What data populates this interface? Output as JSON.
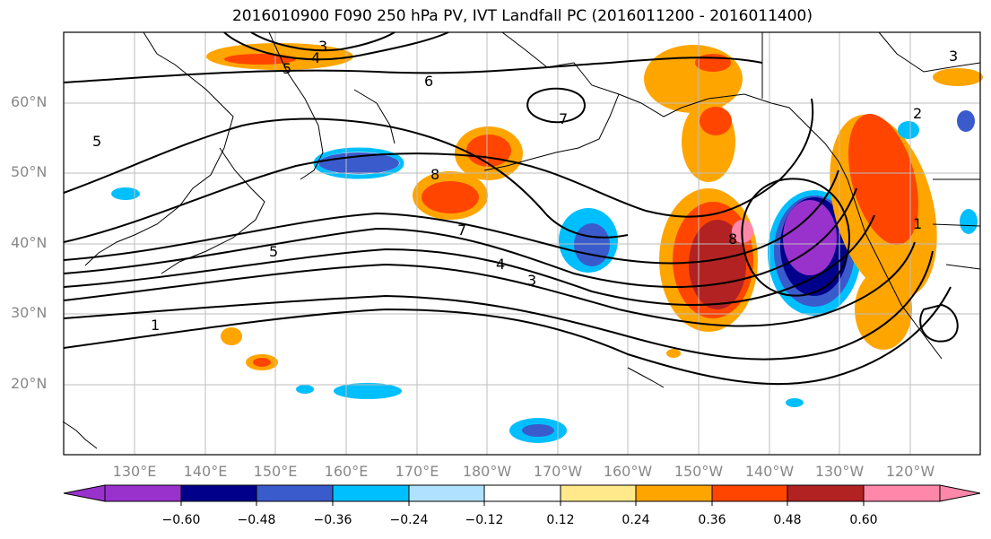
{
  "title": "2016010900 F090 250 hPa PV, IVT Landfall PC (2016011200 - 2016011400)",
  "lat_labels": [
    "60°N",
    "50°N",
    "40°N",
    "30°N",
    "20°N"
  ],
  "lon_labels": [
    "130°E",
    "140°E",
    "150°E",
    "160°E",
    "170°E",
    "180°W",
    "170°W",
    "160°W",
    "150°W",
    "140°W",
    "130°W",
    "120°W"
  ],
  "contour_labels": [
    "1",
    "2",
    "3",
    "4",
    "5",
    "6",
    "7",
    "8"
  ],
  "colorbar": {
    "ticks": [
      "−0.60",
      "−0.48",
      "−0.36",
      "−0.24",
      "−0.12",
      "0.12",
      "0.24",
      "0.36",
      "0.48",
      "0.60"
    ],
    "colors": [
      "#9932cc",
      "#00008b",
      "#3a5bcc",
      "#00bfff",
      "#b0e2ff",
      "#ffffff",
      "#ffe98a",
      "#ffa500",
      "#ff4500",
      "#b22222",
      "#ff88aa"
    ]
  },
  "colors": {
    "contour": "#000000",
    "grid": "#bdbdbd",
    "axis_label": "#888888"
  }
}
